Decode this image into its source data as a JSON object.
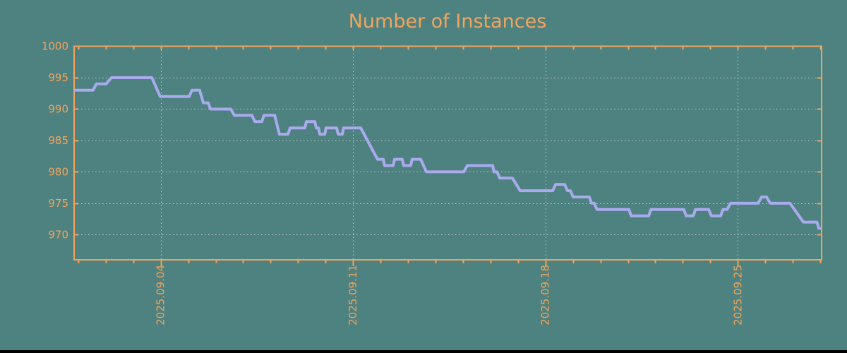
{
  "title": "Number of Instances",
  "colors": {
    "background": "#4E8280",
    "axis_and_text": "#F2A45C",
    "line": "#AAAAEE",
    "grid": "#CACECA",
    "bottom_bar": "#000000"
  },
  "chart_data": {
    "type": "line",
    "title": "Number of Instances",
    "xlabel": "",
    "ylabel": "",
    "legend": "none",
    "grid": true,
    "x_unit": "days since 2025.09.01",
    "x_range_days": [
      0,
      27.2
    ],
    "x_first_minor_tick_day": 0.15,
    "x_minor_tick_every_days": 1,
    "x_ticks": [
      {
        "day": 3.15,
        "label": "2025.09.04"
      },
      {
        "day": 10.15,
        "label": "2025.09.11"
      },
      {
        "day": 17.15,
        "label": "2025.09.18"
      },
      {
        "day": 24.15,
        "label": "2025.09.25"
      }
    ],
    "y_ticks": [
      1000,
      995,
      990,
      985,
      980,
      975,
      970
    ],
    "ylim": [
      966,
      1000
    ],
    "series": [
      {
        "name": "instances",
        "color": "#AAAAEE",
        "points": [
          [
            0,
            993
          ],
          [
            0.69,
            993
          ],
          [
            0.81,
            994
          ],
          [
            1.16,
            994
          ],
          [
            1.36,
            995
          ],
          [
            2.83,
            995
          ],
          [
            3.13,
            992
          ],
          [
            4.19,
            992
          ],
          [
            4.29,
            993
          ],
          [
            4.57,
            993
          ],
          [
            4.7,
            991
          ],
          [
            4.88,
            991
          ],
          [
            4.96,
            990
          ],
          [
            5.7,
            990
          ],
          [
            5.83,
            989
          ],
          [
            6.47,
            989
          ],
          [
            6.58,
            988
          ],
          [
            6.83,
            988
          ],
          [
            6.91,
            989
          ],
          [
            7.3,
            989
          ],
          [
            7.47,
            986
          ],
          [
            7.78,
            986
          ],
          [
            7.86,
            987
          ],
          [
            8.4,
            987
          ],
          [
            8.45,
            988
          ],
          [
            8.76,
            988
          ],
          [
            8.81,
            987
          ],
          [
            8.89,
            987
          ],
          [
            8.94,
            986
          ],
          [
            9.12,
            986
          ],
          [
            9.17,
            987
          ],
          [
            9.55,
            987
          ],
          [
            9.61,
            986
          ],
          [
            9.76,
            986
          ],
          [
            9.81,
            987
          ],
          [
            10.43,
            987
          ],
          [
            11.04,
            982
          ],
          [
            11.25,
            982
          ],
          [
            11.3,
            981
          ],
          [
            11.61,
            981
          ],
          [
            11.66,
            982
          ],
          [
            11.94,
            982
          ],
          [
            11.99,
            981
          ],
          [
            12.25,
            981
          ],
          [
            12.3,
            982
          ],
          [
            12.61,
            982
          ],
          [
            12.82,
            980
          ],
          [
            14.18,
            980
          ],
          [
            14.31,
            981
          ],
          [
            15.23,
            981
          ],
          [
            15.28,
            980
          ],
          [
            15.39,
            980
          ],
          [
            15.49,
            979
          ],
          [
            15.95,
            979
          ],
          [
            16.23,
            977
          ],
          [
            17.42,
            977
          ],
          [
            17.52,
            978
          ],
          [
            17.85,
            978
          ],
          [
            17.95,
            977
          ],
          [
            18.06,
            977
          ],
          [
            18.16,
            976
          ],
          [
            18.75,
            976
          ],
          [
            18.83,
            975
          ],
          [
            18.93,
            975
          ],
          [
            19.03,
            974
          ],
          [
            20.19,
            974
          ],
          [
            20.27,
            973
          ],
          [
            20.91,
            973
          ],
          [
            20.99,
            974
          ],
          [
            22.19,
            974
          ],
          [
            22.27,
            973
          ],
          [
            22.53,
            973
          ],
          [
            22.61,
            974
          ],
          [
            23.09,
            974
          ],
          [
            23.19,
            973
          ],
          [
            23.53,
            973
          ],
          [
            23.61,
            974
          ],
          [
            23.76,
            974
          ],
          [
            23.89,
            975
          ],
          [
            24.89,
            975
          ],
          [
            25.02,
            976
          ],
          [
            25.2,
            976
          ],
          [
            25.33,
            975
          ],
          [
            26.05,
            975
          ],
          [
            26.54,
            972
          ],
          [
            27.03,
            972
          ],
          [
            27.1,
            971
          ],
          [
            27.2,
            971
          ]
        ]
      }
    ]
  }
}
